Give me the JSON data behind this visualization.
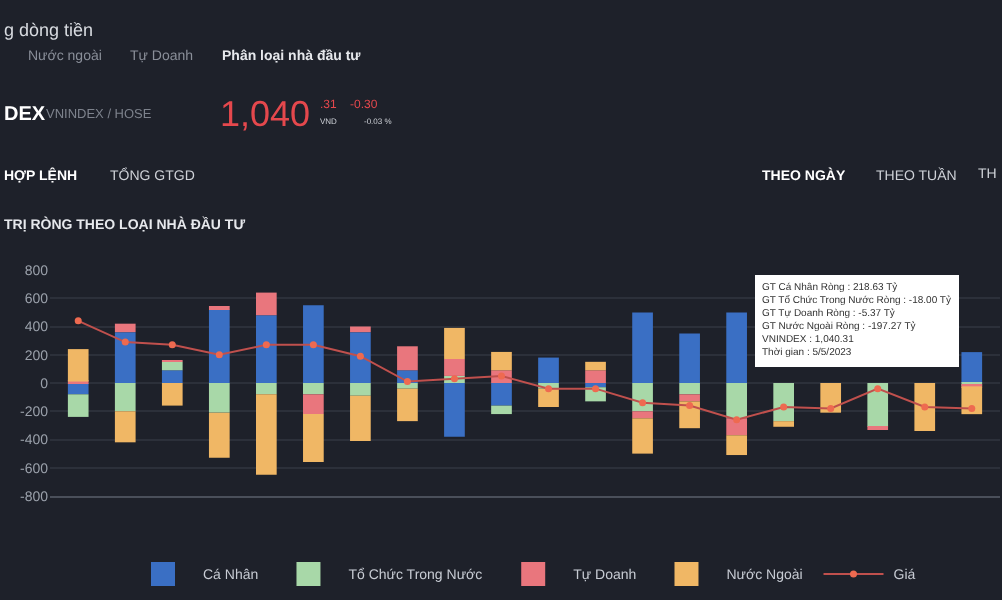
{
  "chart_data": {
    "type": "bar",
    "stacked": true,
    "title": "TRỊ RÒNG THEO LOẠI NHÀ ĐẦU TƯ",
    "categories": [
      null,
      null,
      null,
      null,
      null,
      null,
      null,
      null,
      null,
      null,
      null,
      null,
      null,
      null,
      null,
      null,
      null,
      null,
      null,
      null
    ],
    "series": [
      {
        "name": "Cá Nhân",
        "color": "#3a6fc4",
        "values": [
          -80,
          360,
          90,
          520,
          480,
          550,
          360,
          90,
          -380,
          -160,
          180,
          -30,
          500,
          350,
          500,
          null,
          null,
          null,
          null,
          218.63
        ]
      },
      {
        "name": "Tổ Chức Trong Nước",
        "color": "#a8d8a8",
        "values": [
          -160,
          -200,
          60,
          -210,
          -80,
          -80,
          -90,
          -40,
          50,
          -60,
          -40,
          -100,
          -200,
          -80,
          -250,
          -270,
          null,
          -310,
          null,
          -18
        ]
      },
      {
        "name": "Tự Doanh",
        "color": "#e9767d",
        "values": [
          10,
          60,
          10,
          20,
          160,
          -140,
          40,
          170,
          120,
          90,
          null,
          90,
          -50,
          -50,
          -120,
          null,
          null,
          -20,
          null,
          -5.37
        ]
      },
      {
        "name": "Nước Ngoài",
        "color": "#f0b765",
        "values": [
          230,
          -220,
          -160,
          -320,
          -570,
          -340,
          -320,
          -230,
          220,
          130,
          -130,
          60,
          -250,
          -190,
          -140,
          -40,
          -210,
          null,
          -340,
          -197.27
        ]
      },
      {
        "name": "Giá",
        "type": "line",
        "color": "#c0504d",
        "marker": "circle",
        "values": [
          440,
          290,
          270,
          200,
          270,
          270,
          190,
          10,
          30,
          50,
          -40,
          -40,
          -140,
          -160,
          -260,
          -170,
          -180,
          -40,
          -170,
          -180
        ]
      }
    ],
    "ylim": [
      -800,
      800
    ],
    "yticks": [
      -800,
      -600,
      -400,
      -200,
      0,
      200,
      400,
      600,
      800
    ],
    "grid": "y",
    "legend": "bottom",
    "tick_labels": "y",
    "annotations": [
      "g dòng tiền",
      "Nước ngoài",
      "Tự Doanh",
      "Phân loại nhà đầu tư",
      "DEX",
      "VNINDEX / HOSE",
      "1,040",
      ".31",
      "VND",
      "-0.30",
      "-0.03 %",
      "HỢP LỆNH",
      "TỔNG GTGD",
      "THEO NGÀY",
      "THEO TUẦN",
      "TH",
      "GT Cá Nhân Ròng : 218.63 Tỷ\nGT Tổ Chức Trong Nước Ròng : -18.00 Tỷ\nGT Tự Doanh Ròng : -5.37 Tỷ\nGT Nước Ngoài Ròng : -197.27 Tỷ\nVNINDEX : 1,040.31\nThời gian : 5/5/2023"
    ]
  }
}
